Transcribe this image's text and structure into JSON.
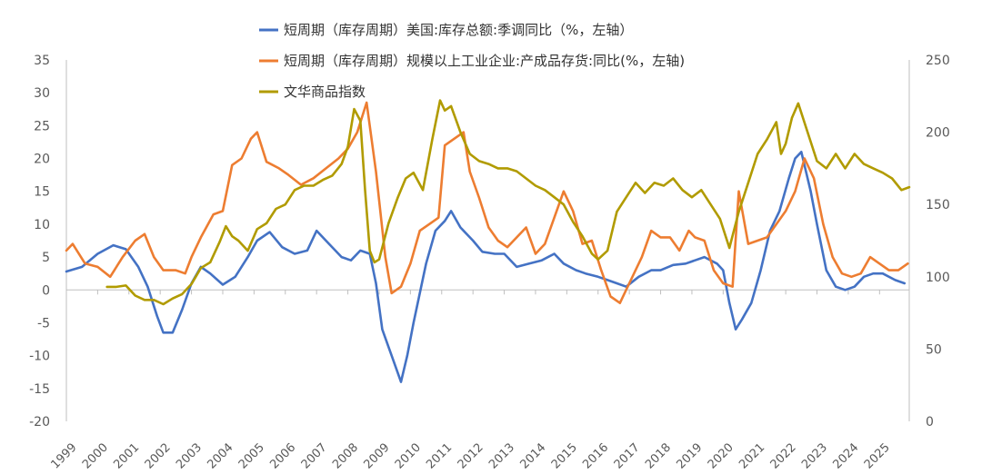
{
  "chart_data": {
    "type": "line",
    "title": "",
    "xlabel": "",
    "ylabel": "",
    "y2label": "",
    "x_ticks": [
      "1999",
      "2000",
      "2001",
      "2002",
      "2003",
      "2004",
      "2005",
      "2006",
      "2007",
      "2008",
      "2009",
      "2010",
      "2011",
      "2012",
      "2013",
      "2014",
      "2015",
      "2016",
      "2017",
      "2018",
      "2019",
      "2020",
      "2021",
      "2022",
      "2023",
      "2024",
      "2025"
    ],
    "xlim": [
      1999.0,
      2025.95
    ],
    "ylim_left": [
      -20,
      35
    ],
    "yticks_left": [
      35,
      30,
      25,
      20,
      15,
      10,
      5,
      0,
      -5,
      -10,
      -15,
      -20
    ],
    "ylim_right": [
      0,
      250
    ],
    "yticks_right": [
      250,
      200,
      150,
      100,
      50,
      0
    ],
    "grid": false,
    "legend_position": "top-center",
    "series": [
      {
        "name": "短周期（库存周期）美国:库存总额:季调同比（%，左轴）",
        "axis": "left",
        "color": "#4472C4",
        "x": [
          1999.0,
          1999.5,
          2000.0,
          2000.5,
          2000.9,
          2001.3,
          2001.6,
          2001.9,
          2002.1,
          2002.4,
          2002.7,
          2003.0,
          2003.3,
          2003.6,
          2004.0,
          2004.4,
          2004.8,
          2005.1,
          2005.5,
          2005.9,
          2006.3,
          2006.7,
          2007.0,
          2007.4,
          2007.8,
          2008.1,
          2008.4,
          2008.7,
          2008.9,
          2009.1,
          2009.4,
          2009.7,
          2009.9,
          2010.1,
          2010.5,
          2010.8,
          2011.1,
          2011.3,
          2011.6,
          2012.0,
          2012.3,
          2012.7,
          2013.0,
          2013.4,
          2013.8,
          2014.2,
          2014.6,
          2014.9,
          2015.3,
          2015.6,
          2016.0,
          2016.3,
          2016.6,
          2016.9,
          2017.3,
          2017.7,
          2018.0,
          2018.4,
          2018.8,
          2019.1,
          2019.4,
          2019.8,
          2020.0,
          2020.2,
          2020.4,
          2020.6,
          2020.9,
          2021.2,
          2021.5,
          2021.8,
          2022.1,
          2022.3,
          2022.5,
          2022.8,
          2023.0,
          2023.3,
          2023.6,
          2023.9,
          2024.2,
          2024.5,
          2024.8,
          2025.1,
          2025.5,
          2025.8
        ],
        "values": [
          2.8,
          3.5,
          5.5,
          6.8,
          6.2,
          3.5,
          0.5,
          -4,
          -6.5,
          -6.5,
          -3,
          1,
          3.5,
          2.5,
          0.8,
          2,
          5,
          7.5,
          8.8,
          6.5,
          5.5,
          6,
          9,
          7,
          5,
          4.5,
          6,
          5.5,
          1,
          -6,
          -10,
          -14,
          -10,
          -5,
          4,
          9,
          10.5,
          12,
          9.5,
          7.5,
          5.8,
          5.5,
          5.5,
          3.5,
          4,
          4.5,
          5.5,
          4,
          3,
          2.5,
          2,
          1.5,
          1,
          0.5,
          2,
          3,
          3,
          3.8,
          4,
          4.5,
          5,
          4,
          3,
          -2,
          -6,
          -4.5,
          -2,
          3,
          9,
          12,
          17,
          20,
          21,
          15,
          10,
          3,
          0.5,
          0,
          0.5,
          2,
          2.5,
          2.5,
          1.5,
          1
        ]
      },
      {
        "name": "短周期（库存周期）规模以上工业企业:产成品存货:同比(%，左轴)",
        "axis": "left",
        "color": "#ED7D31",
        "x": [
          1999.0,
          1999.2,
          1999.6,
          2000.0,
          2000.4,
          2000.8,
          2001.2,
          2001.5,
          2001.8,
          2002.1,
          2002.5,
          2002.8,
          2003.0,
          2003.3,
          2003.7,
          2004.0,
          2004.3,
          2004.6,
          2004.9,
          2005.1,
          2005.4,
          2005.8,
          2006.1,
          2006.5,
          2006.9,
          2007.3,
          2007.7,
          2008.0,
          2008.3,
          2008.6,
          2008.9,
          2009.2,
          2009.4,
          2009.7,
          2010.0,
          2010.3,
          2010.6,
          2010.9,
          2011.1,
          2011.4,
          2011.7,
          2011.9,
          2012.2,
          2012.5,
          2012.8,
          2013.1,
          2013.4,
          2013.7,
          2014.0,
          2014.3,
          2014.6,
          2014.9,
          2015.2,
          2015.5,
          2015.8,
          2016.1,
          2016.4,
          2016.7,
          2017.0,
          2017.4,
          2017.7,
          2018.0,
          2018.3,
          2018.6,
          2018.9,
          2019.1,
          2019.4,
          2019.7,
          2020.0,
          2020.3,
          2020.5,
          2020.8,
          2021.1,
          2021.4,
          2021.7,
          2022.0,
          2022.3,
          2022.6,
          2022.9,
          2023.2,
          2023.5,
          2023.8,
          2024.1,
          2024.4,
          2024.7,
          2025.0,
          2025.3,
          2025.6,
          2025.9
        ],
        "values": [
          6,
          7,
          4,
          3.5,
          2,
          5,
          7.5,
          8.5,
          5,
          3,
          3,
          2.5,
          5,
          8,
          11.5,
          12,
          19,
          20,
          23,
          24,
          19.5,
          18.5,
          17.5,
          16,
          17,
          18.5,
          20,
          21.5,
          24,
          28.5,
          18,
          5,
          -0.5,
          0.5,
          4,
          9,
          10,
          11,
          22,
          23,
          24,
          18,
          14,
          9.5,
          7.5,
          6.5,
          8,
          9.5,
          5.5,
          7,
          11,
          15,
          12,
          7,
          7.5,
          3,
          -1,
          -2,
          1,
          5,
          9,
          8,
          8,
          6,
          9,
          8,
          7.5,
          3,
          1,
          0.5,
          15,
          7,
          7.5,
          8,
          10,
          12,
          15,
          20,
          17,
          10,
          5,
          2.5,
          2,
          2.5,
          5,
          4,
          3,
          3,
          4
        ]
      },
      {
        "name": "文华商品指数",
        "axis": "right",
        "color": "#B19B00",
        "x": [
          2000.3,
          2000.6,
          2000.9,
          2001.2,
          2001.5,
          2001.8,
          2002.1,
          2002.4,
          2002.7,
          2003.0,
          2003.3,
          2003.6,
          2003.9,
          2004.1,
          2004.3,
          2004.5,
          2004.8,
          2005.1,
          2005.4,
          2005.7,
          2006.0,
          2006.3,
          2006.6,
          2006.9,
          2007.2,
          2007.5,
          2007.8,
          2008.0,
          2008.2,
          2008.4,
          2008.55,
          2008.7,
          2008.85,
          2009.0,
          2009.3,
          2009.6,
          2009.85,
          2010.1,
          2010.4,
          2010.7,
          2010.95,
          2011.1,
          2011.3,
          2011.6,
          2011.9,
          2012.2,
          2012.5,
          2012.8,
          2013.1,
          2013.4,
          2013.7,
          2014.0,
          2014.3,
          2014.6,
          2014.9,
          2015.2,
          2015.5,
          2015.8,
          2016.0,
          2016.3,
          2016.6,
          2016.9,
          2017.2,
          2017.5,
          2017.8,
          2018.1,
          2018.4,
          2018.7,
          2019.0,
          2019.3,
          2019.6,
          2019.9,
          2020.2,
          2020.5,
          2020.8,
          2021.1,
          2021.4,
          2021.7,
          2021.85,
          2022.0,
          2022.2,
          2022.4,
          2022.7,
          2023.0,
          2023.3,
          2023.6,
          2023.9,
          2024.2,
          2024.5,
          2024.8,
          2025.1,
          2025.4,
          2025.7,
          2025.95
        ],
        "values": [
          93,
          93,
          94,
          87,
          84,
          84,
          81,
          85,
          88,
          95,
          106,
          110,
          124,
          135,
          128,
          125,
          118,
          133,
          137,
          147,
          150,
          160,
          163,
          163,
          167,
          170,
          178,
          190,
          216,
          208,
          160,
          118,
          110,
          112,
          137,
          155,
          168,
          172,
          160,
          195,
          222,
          215,
          218,
          200,
          185,
          180,
          178,
          175,
          175,
          173,
          168,
          163,
          160,
          155,
          150,
          138,
          128,
          116,
          112,
          118,
          145,
          155,
          165,
          158,
          165,
          163,
          168,
          160,
          155,
          160,
          150,
          140,
          120,
          145,
          165,
          185,
          195,
          207,
          185,
          192,
          210,
          220,
          200,
          180,
          175,
          185,
          175,
          185,
          178,
          175,
          172,
          168,
          160,
          162
        ]
      }
    ]
  }
}
